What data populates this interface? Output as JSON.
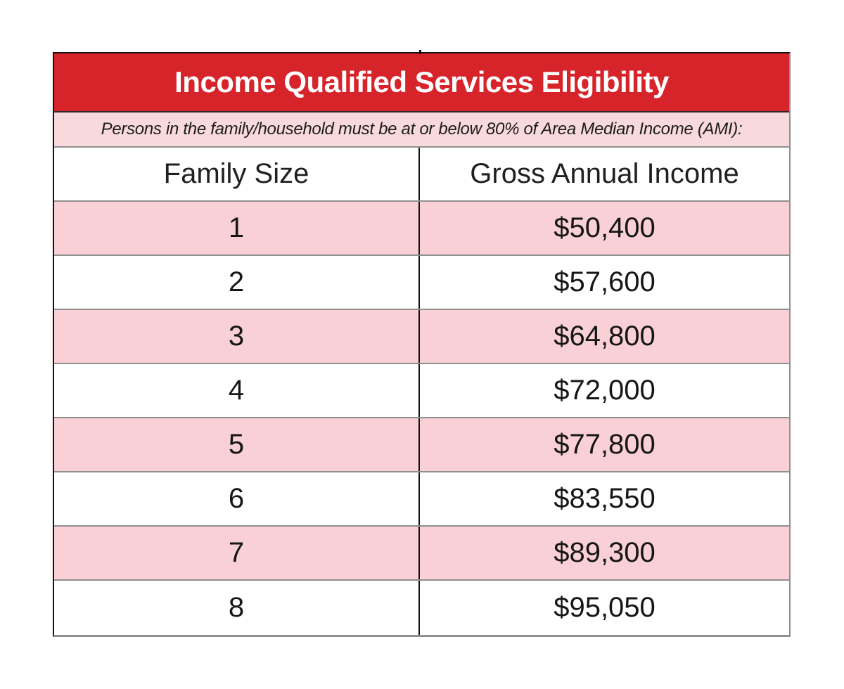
{
  "table": {
    "title": "Income Qualified Services Eligibility",
    "subtitle": "Persons in the family/household must be at or below 80% of Area Median Income (AMI):",
    "columns": [
      "Family Size",
      "Gross Annual Income"
    ],
    "rows": [
      {
        "family_size": "1",
        "income": "$50,400"
      },
      {
        "family_size": "2",
        "income": "$57,600"
      },
      {
        "family_size": "3",
        "income": "$64,800"
      },
      {
        "family_size": "4",
        "income": "$72,000"
      },
      {
        "family_size": "5",
        "income": "$77,800"
      },
      {
        "family_size": "6",
        "income": "$83,550"
      },
      {
        "family_size": "7",
        "income": "$89,300"
      },
      {
        "family_size": "8",
        "income": "$95,050"
      }
    ]
  },
  "colors": {
    "header_red": "#d7232a",
    "subtitle_pink": "#f8d9dc",
    "row_pink": "#f9d0d6",
    "border_dark": "#111111",
    "border_gray": "#8f8f8f",
    "text": "#161616",
    "title_text": "#ffffff",
    "page_bg": "#ffffff"
  }
}
